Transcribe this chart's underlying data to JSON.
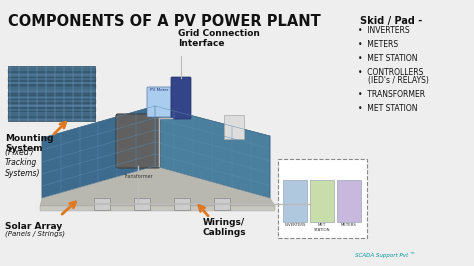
{
  "title": "COMPONENTS OF A PV POWER PLANT",
  "bg_color": "#eeeeee",
  "title_color": "#111111",
  "title_fontsize": 10.5,
  "arrow_color": "#e07820",
  "text_color": "#111111",
  "skid_title": "Skid / Pad -",
  "skid_items": [
    "INVERTERS",
    "METERS",
    "MET STATION",
    "CONTROLLERS\n(IED's / RELAYS)",
    "TRANSFORMER",
    "MET STATION"
  ],
  "watermark": "SCADA Support Pvt ™",
  "watermark_color": "#009999",
  "panel_color1": "#3d6b8e",
  "panel_color2": "#4a7f9e",
  "grid_line_color": "#5a8ab0",
  "cable_color": "#bbbbbb",
  "photo_color": "#4a6e8a"
}
